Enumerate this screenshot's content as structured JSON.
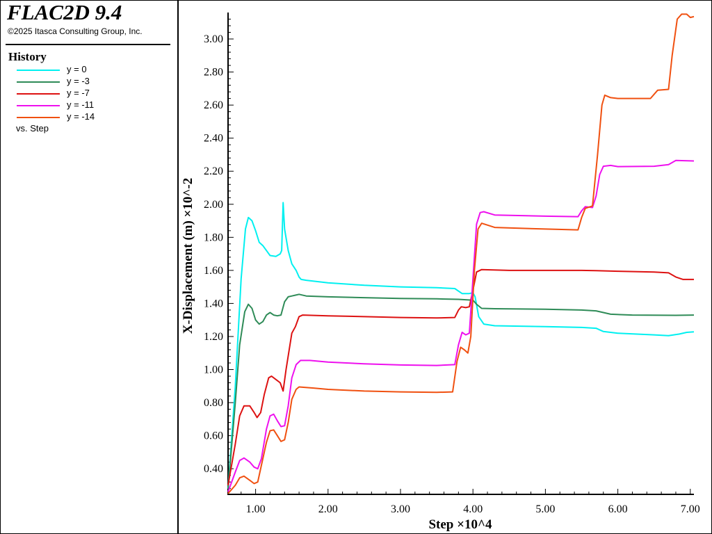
{
  "app": {
    "title": "FLAC2D 9.4",
    "copyright": "©2025 Itasca Consulting Group, Inc."
  },
  "legend": {
    "heading": "History",
    "entries": [
      {
        "label": "y = 0",
        "color": "#00f0f0"
      },
      {
        "label": "y = -3",
        "color": "#2e8b57"
      },
      {
        "label": "y = -7",
        "color": "#dd1111"
      },
      {
        "label": "y = -11",
        "color": "#ee10ee"
      },
      {
        "label": "y = -14",
        "color": "#f05010"
      }
    ],
    "vs_label": "vs. Step"
  },
  "chart_data": {
    "type": "line",
    "xlabel": "Step ×10^4",
    "ylabel": "X-Displacement (m) ×10^-2",
    "xlim": [
      0.62,
      7.05
    ],
    "ylim": [
      0.245,
      3.16
    ],
    "x_ticks": [
      "1.00",
      "2.00",
      "3.00",
      "4.00",
      "5.00",
      "6.00",
      "7.00"
    ],
    "y_ticks": [
      "0.40",
      "0.60",
      "0.80",
      "1.00",
      "1.20",
      "1.40",
      "1.60",
      "1.80",
      "2.00",
      "2.20",
      "2.40",
      "2.60",
      "2.80",
      "3.00"
    ],
    "grid": false,
    "legend_position": "left panel",
    "series": [
      {
        "name": "y = 0",
        "color": "#00f0f0",
        "points": [
          [
            0.62,
            0.28
          ],
          [
            0.72,
            0.9
          ],
          [
            0.8,
            1.55
          ],
          [
            0.86,
            1.85
          ],
          [
            0.9,
            1.92
          ],
          [
            0.95,
            1.9
          ],
          [
            1.0,
            1.84
          ],
          [
            1.05,
            1.77
          ],
          [
            1.1,
            1.75
          ],
          [
            1.15,
            1.72
          ],
          [
            1.2,
            1.69
          ],
          [
            1.28,
            1.685
          ],
          [
            1.34,
            1.7
          ],
          [
            1.36,
            1.72
          ],
          [
            1.38,
            2.01
          ],
          [
            1.4,
            1.85
          ],
          [
            1.45,
            1.72
          ],
          [
            1.5,
            1.64
          ],
          [
            1.56,
            1.6
          ],
          [
            1.6,
            1.56
          ],
          [
            1.63,
            1.545
          ],
          [
            1.7,
            1.54
          ],
          [
            2.0,
            1.525
          ],
          [
            2.5,
            1.51
          ],
          [
            3.0,
            1.5
          ],
          [
            3.5,
            1.495
          ],
          [
            3.75,
            1.49
          ],
          [
            3.85,
            1.46
          ],
          [
            3.95,
            1.46
          ],
          [
            4.0,
            1.465
          ],
          [
            4.03,
            1.44
          ],
          [
            4.08,
            1.32
          ],
          [
            4.15,
            1.275
          ],
          [
            4.3,
            1.265
          ],
          [
            5.0,
            1.26
          ],
          [
            5.5,
            1.255
          ],
          [
            5.7,
            1.25
          ],
          [
            5.8,
            1.23
          ],
          [
            6.0,
            1.22
          ],
          [
            6.5,
            1.21
          ],
          [
            6.7,
            1.205
          ],
          [
            6.85,
            1.215
          ],
          [
            6.95,
            1.225
          ],
          [
            7.05,
            1.228
          ]
        ]
      },
      {
        "name": "y = -3",
        "color": "#2e8b57",
        "points": [
          [
            0.62,
            0.28
          ],
          [
            0.72,
            0.8
          ],
          [
            0.78,
            1.15
          ],
          [
            0.85,
            1.35
          ],
          [
            0.9,
            1.395
          ],
          [
            0.95,
            1.37
          ],
          [
            1.0,
            1.3
          ],
          [
            1.05,
            1.275
          ],
          [
            1.1,
            1.29
          ],
          [
            1.15,
            1.33
          ],
          [
            1.2,
            1.345
          ],
          [
            1.25,
            1.33
          ],
          [
            1.3,
            1.325
          ],
          [
            1.35,
            1.33
          ],
          [
            1.4,
            1.41
          ],
          [
            1.45,
            1.44
          ],
          [
            1.5,
            1.445
          ],
          [
            1.55,
            1.45
          ],
          [
            1.6,
            1.455
          ],
          [
            1.7,
            1.445
          ],
          [
            2.0,
            1.44
          ],
          [
            2.5,
            1.435
          ],
          [
            3.0,
            1.43
          ],
          [
            3.5,
            1.428
          ],
          [
            3.8,
            1.425
          ],
          [
            4.0,
            1.42
          ],
          [
            4.05,
            1.395
          ],
          [
            4.12,
            1.37
          ],
          [
            4.3,
            1.368
          ],
          [
            5.0,
            1.365
          ],
          [
            5.5,
            1.36
          ],
          [
            5.7,
            1.355
          ],
          [
            5.8,
            1.345
          ],
          [
            5.9,
            1.335
          ],
          [
            6.2,
            1.33
          ],
          [
            6.8,
            1.328
          ],
          [
            7.05,
            1.33
          ]
        ]
      },
      {
        "name": "y = -7",
        "color": "#dd1111",
        "points": [
          [
            0.62,
            0.3
          ],
          [
            0.72,
            0.55
          ],
          [
            0.78,
            0.72
          ],
          [
            0.84,
            0.78
          ],
          [
            0.92,
            0.78
          ],
          [
            0.98,
            0.74
          ],
          [
            1.02,
            0.71
          ],
          [
            1.07,
            0.74
          ],
          [
            1.12,
            0.85
          ],
          [
            1.18,
            0.95
          ],
          [
            1.22,
            0.96
          ],
          [
            1.28,
            0.94
          ],
          [
            1.34,
            0.92
          ],
          [
            1.38,
            0.87
          ],
          [
            1.42,
            1.0
          ],
          [
            1.5,
            1.22
          ],
          [
            1.55,
            1.26
          ],
          [
            1.6,
            1.32
          ],
          [
            1.65,
            1.33
          ],
          [
            2.0,
            1.325
          ],
          [
            2.5,
            1.32
          ],
          [
            3.0,
            1.315
          ],
          [
            3.5,
            1.312
          ],
          [
            3.75,
            1.315
          ],
          [
            3.8,
            1.36
          ],
          [
            3.84,
            1.38
          ],
          [
            3.9,
            1.375
          ],
          [
            3.95,
            1.38
          ],
          [
            4.0,
            1.48
          ],
          [
            4.05,
            1.59
          ],
          [
            4.12,
            1.605
          ],
          [
            4.5,
            1.6
          ],
          [
            5.0,
            1.6
          ],
          [
            5.5,
            1.6
          ],
          [
            5.7,
            1.598
          ],
          [
            6.0,
            1.595
          ],
          [
            6.5,
            1.59
          ],
          [
            6.7,
            1.585
          ],
          [
            6.8,
            1.56
          ],
          [
            6.9,
            1.545
          ],
          [
            7.05,
            1.545
          ]
        ]
      },
      {
        "name": "y = -11",
        "color": "#ee10ee",
        "points": [
          [
            0.62,
            0.26
          ],
          [
            0.72,
            0.38
          ],
          [
            0.78,
            0.45
          ],
          [
            0.84,
            0.465
          ],
          [
            0.92,
            0.44
          ],
          [
            0.98,
            0.41
          ],
          [
            1.03,
            0.4
          ],
          [
            1.08,
            0.46
          ],
          [
            1.15,
            0.64
          ],
          [
            1.2,
            0.72
          ],
          [
            1.25,
            0.73
          ],
          [
            1.3,
            0.69
          ],
          [
            1.35,
            0.655
          ],
          [
            1.4,
            0.66
          ],
          [
            1.45,
            0.78
          ],
          [
            1.5,
            0.95
          ],
          [
            1.56,
            1.03
          ],
          [
            1.62,
            1.055
          ],
          [
            1.75,
            1.055
          ],
          [
            2.0,
            1.045
          ],
          [
            2.5,
            1.035
          ],
          [
            3.0,
            1.028
          ],
          [
            3.5,
            1.025
          ],
          [
            3.75,
            1.03
          ],
          [
            3.8,
            1.15
          ],
          [
            3.85,
            1.225
          ],
          [
            3.9,
            1.21
          ],
          [
            3.95,
            1.22
          ],
          [
            4.0,
            1.55
          ],
          [
            4.05,
            1.88
          ],
          [
            4.1,
            1.95
          ],
          [
            4.15,
            1.955
          ],
          [
            4.3,
            1.935
          ],
          [
            5.0,
            1.928
          ],
          [
            5.45,
            1.925
          ],
          [
            5.5,
            1.96
          ],
          [
            5.55,
            1.985
          ],
          [
            5.65,
            1.98
          ],
          [
            5.7,
            2.05
          ],
          [
            5.75,
            2.18
          ],
          [
            5.8,
            2.23
          ],
          [
            5.9,
            2.235
          ],
          [
            6.0,
            2.228
          ],
          [
            6.5,
            2.23
          ],
          [
            6.7,
            2.24
          ],
          [
            6.8,
            2.265
          ],
          [
            7.05,
            2.262
          ]
        ]
      },
      {
        "name": "y = -14",
        "color": "#f05010",
        "points": [
          [
            0.62,
            0.25
          ],
          [
            0.72,
            0.3
          ],
          [
            0.78,
            0.345
          ],
          [
            0.84,
            0.355
          ],
          [
            0.92,
            0.33
          ],
          [
            0.98,
            0.31
          ],
          [
            1.03,
            0.32
          ],
          [
            1.08,
            0.42
          ],
          [
            1.15,
            0.56
          ],
          [
            1.2,
            0.63
          ],
          [
            1.25,
            0.635
          ],
          [
            1.3,
            0.6
          ],
          [
            1.35,
            0.565
          ],
          [
            1.4,
            0.575
          ],
          [
            1.45,
            0.68
          ],
          [
            1.5,
            0.82
          ],
          [
            1.56,
            0.88
          ],
          [
            1.6,
            0.895
          ],
          [
            1.8,
            0.888
          ],
          [
            2.0,
            0.88
          ],
          [
            2.5,
            0.87
          ],
          [
            3.0,
            0.865
          ],
          [
            3.5,
            0.862
          ],
          [
            3.72,
            0.865
          ],
          [
            3.78,
            1.05
          ],
          [
            3.83,
            1.135
          ],
          [
            3.88,
            1.12
          ],
          [
            3.93,
            1.1
          ],
          [
            3.97,
            1.2
          ],
          [
            4.02,
            1.6
          ],
          [
            4.07,
            1.85
          ],
          [
            4.12,
            1.885
          ],
          [
            4.3,
            1.86
          ],
          [
            5.0,
            1.85
          ],
          [
            5.45,
            1.845
          ],
          [
            5.5,
            1.92
          ],
          [
            5.55,
            1.975
          ],
          [
            5.65,
            1.99
          ],
          [
            5.72,
            2.3
          ],
          [
            5.78,
            2.6
          ],
          [
            5.82,
            2.66
          ],
          [
            5.9,
            2.645
          ],
          [
            6.0,
            2.64
          ],
          [
            6.45,
            2.64
          ],
          [
            6.55,
            2.69
          ],
          [
            6.7,
            2.695
          ],
          [
            6.75,
            2.9
          ],
          [
            6.82,
            3.12
          ],
          [
            6.88,
            3.15
          ],
          [
            6.95,
            3.15
          ],
          [
            7.0,
            3.13
          ],
          [
            7.05,
            3.135
          ]
        ]
      }
    ]
  }
}
